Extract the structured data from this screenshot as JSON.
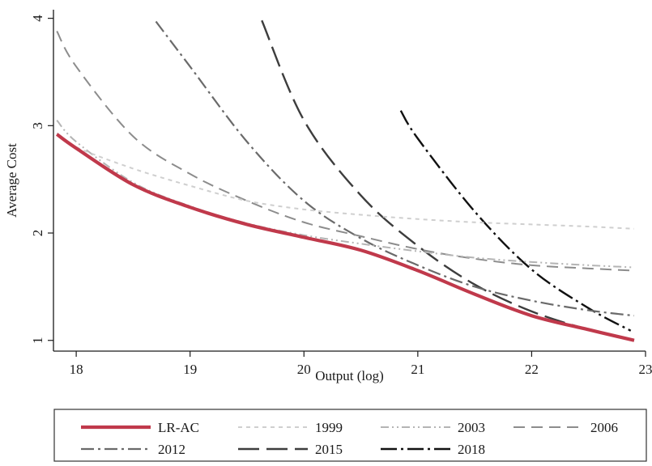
{
  "chart_data": {
    "type": "line",
    "xlabel": "Output (log)",
    "ylabel": "Average Cost",
    "xlim": [
      17.8,
      23.0
    ],
    "ylim": [
      0.9,
      4.08
    ],
    "xticks": [
      18,
      19,
      20,
      21,
      22,
      23
    ],
    "yticks": [
      1,
      2,
      3,
      4
    ],
    "grid": false,
    "legend_position": "bottom",
    "series": [
      {
        "name": "LR-AC",
        "color": "#c0394b",
        "x": [
          17.83,
          18.0,
          18.5,
          19.0,
          19.5,
          20.0,
          20.5,
          21.0,
          21.5,
          22.0,
          22.5,
          22.9
        ],
        "y": [
          2.92,
          2.79,
          2.45,
          2.24,
          2.08,
          1.96,
          1.84,
          1.65,
          1.43,
          1.23,
          1.1,
          1.0
        ]
      },
      {
        "name": "1999",
        "color": "#cfcfcf",
        "x": [
          17.83,
          18.0,
          18.5,
          19.0,
          19.5,
          20.0,
          20.5,
          21.0,
          21.5,
          22.0,
          22.5,
          22.9
        ],
        "y": [
          2.93,
          2.8,
          2.6,
          2.44,
          2.3,
          2.22,
          2.17,
          2.13,
          2.1,
          2.08,
          2.06,
          2.04
        ]
      },
      {
        "name": "2003",
        "color": "#b4b4b4",
        "x": [
          17.83,
          18.0,
          18.5,
          19.0,
          19.5,
          20.0,
          20.5,
          21.0,
          21.5,
          22.0,
          22.5,
          22.9
        ],
        "y": [
          3.05,
          2.85,
          2.47,
          2.25,
          2.09,
          1.98,
          1.9,
          1.83,
          1.77,
          1.73,
          1.7,
          1.68
        ]
      },
      {
        "name": "2006",
        "color": "#8c8c8c",
        "x": [
          17.83,
          18.0,
          18.5,
          19.0,
          19.5,
          20.0,
          20.5,
          21.0,
          21.5,
          22.0,
          22.5,
          22.9
        ],
        "y": [
          3.88,
          3.55,
          2.9,
          2.55,
          2.3,
          2.1,
          1.97,
          1.85,
          1.76,
          1.7,
          1.67,
          1.65
        ]
      },
      {
        "name": "2012",
        "color": "#6a6a6a",
        "x": [
          18.7,
          19.0,
          19.5,
          20.0,
          20.5,
          21.0,
          21.5,
          22.0,
          22.5,
          22.9
        ],
        "y": [
          3.97,
          3.55,
          2.85,
          2.3,
          1.95,
          1.7,
          1.5,
          1.37,
          1.28,
          1.23
        ]
      },
      {
        "name": "2015",
        "color": "#3d3d3d",
        "x": [
          19.63,
          20.0,
          20.5,
          21.0,
          21.5,
          22.0,
          22.5,
          22.9
        ],
        "y": [
          3.98,
          3.05,
          2.35,
          1.88,
          1.52,
          1.27,
          1.1,
          1.0
        ]
      },
      {
        "name": "2018",
        "color": "#111111",
        "x": [
          20.85,
          21.0,
          21.5,
          22.0,
          22.5,
          22.87
        ],
        "y": [
          3.14,
          2.88,
          2.2,
          1.66,
          1.3,
          1.09
        ]
      }
    ]
  }
}
